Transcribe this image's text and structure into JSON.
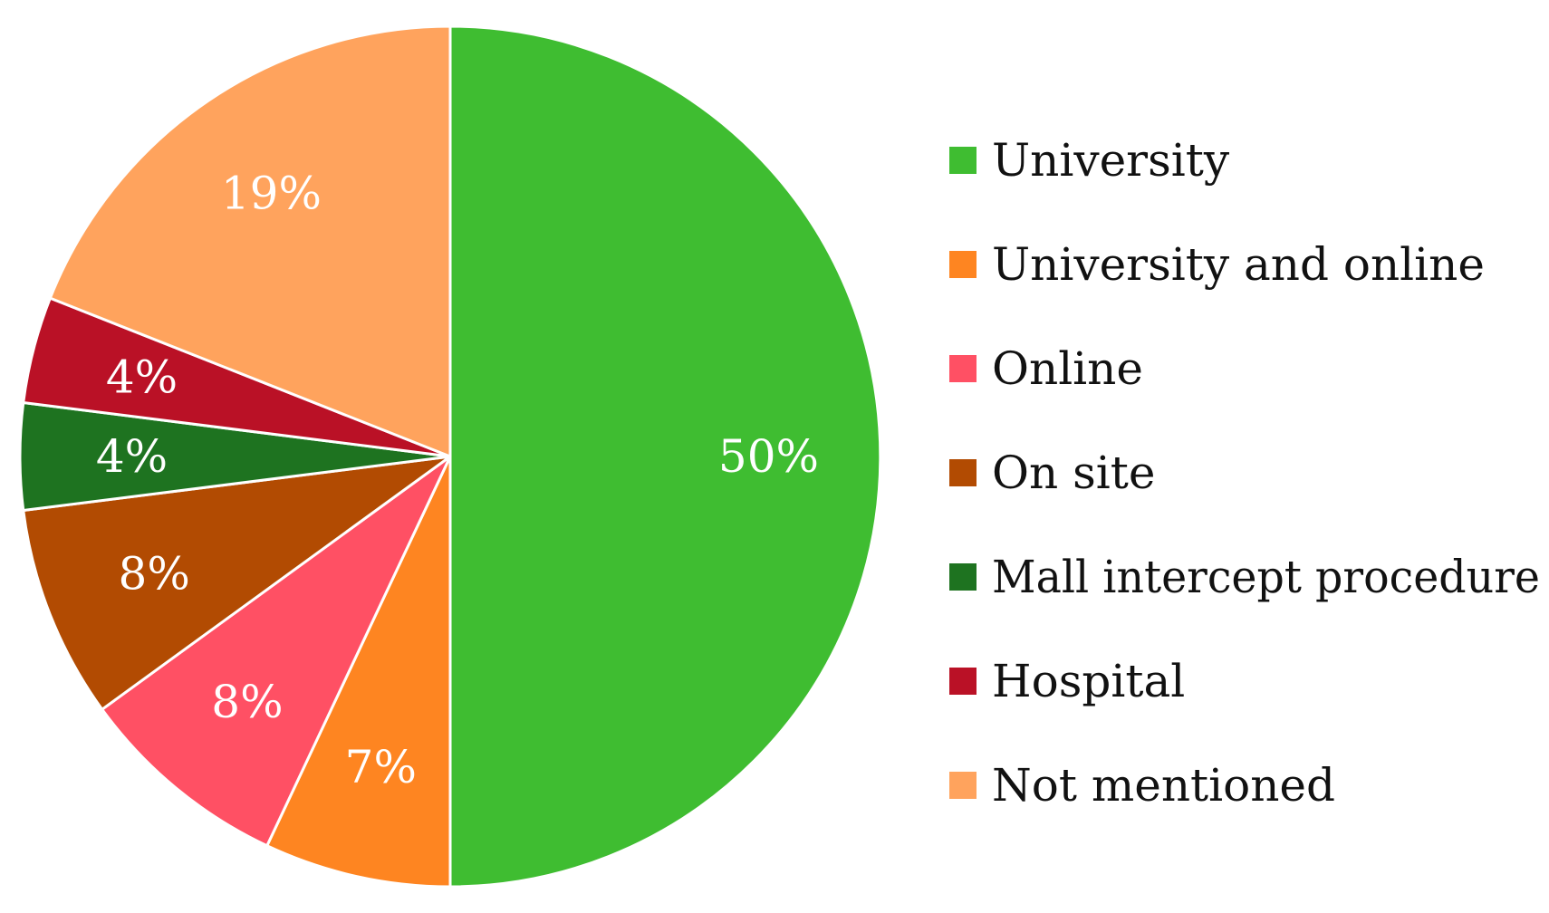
{
  "chart_data": {
    "type": "pie",
    "start_angle_deg": 0,
    "direction": "clockwise",
    "legend_position": "right",
    "slices": [
      {
        "label": "University",
        "value": 50,
        "display": "50%",
        "color": "#3fbd31"
      },
      {
        "label": "University and online",
        "value": 7,
        "display": "7%",
        "color": "#fe8521"
      },
      {
        "label": "Online",
        "value": 8,
        "display": "8%",
        "color": "#ff5064"
      },
      {
        "label": "On site",
        "value": 8,
        "display": "8%",
        "color": "#b24b02"
      },
      {
        "label": "Mall intercept procedure",
        "value": 4,
        "display": "4%",
        "color": "#1e7320"
      },
      {
        "label": "Hospital",
        "value": 4,
        "display": "4%",
        "color": "#ba1126"
      },
      {
        "label": "Not mentioned",
        "value": 19,
        "display": "19%",
        "color": "#ffa35d"
      }
    ]
  }
}
